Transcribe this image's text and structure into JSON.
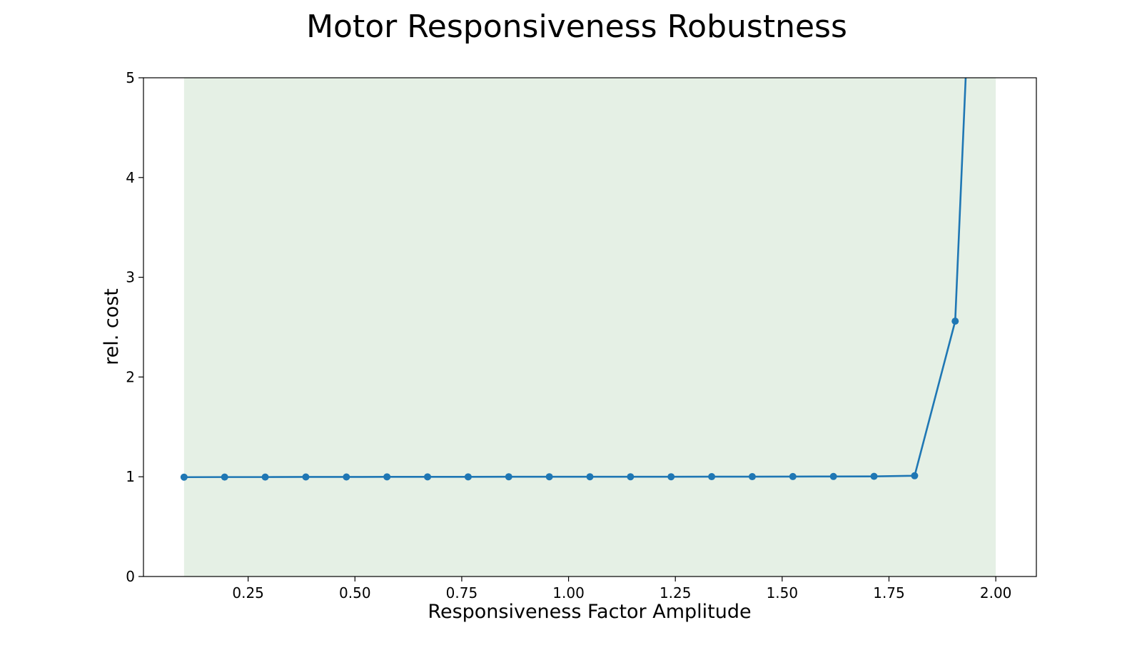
{
  "chart_data": {
    "type": "line",
    "title": "Motor Responsiveness Robustness",
    "xlabel": "Responsiveness Factor Amplitude",
    "ylabel": "rel. cost",
    "xlim": [
      0.005,
      2.095
    ],
    "ylim": [
      0,
      5
    ],
    "xticks": [
      0.25,
      0.5,
      0.75,
      1.0,
      1.25,
      1.5,
      1.75,
      2.0
    ],
    "xtick_labels": [
      "0.25",
      "0.50",
      "0.75",
      "1.00",
      "1.25",
      "1.50",
      "1.75",
      "2.00"
    ],
    "yticks": [
      0,
      1,
      2,
      3,
      4,
      5
    ],
    "ytick_labels": [
      "0",
      "1",
      "2",
      "3",
      "4",
      "5"
    ],
    "grid": false,
    "shaded_region": {
      "x_start": 0.1,
      "x_end": 2.0,
      "color": "#e5f0e5"
    },
    "series": [
      {
        "color": "#1f77b4",
        "x": [
          0.1,
          0.195,
          0.29,
          0.385,
          0.48,
          0.575,
          0.67,
          0.765,
          0.86,
          0.955,
          1.05,
          1.145,
          1.24,
          1.335,
          1.43,
          1.525,
          1.62,
          1.715,
          1.81,
          1.905
        ],
        "y": [
          0.996,
          0.997,
          0.997,
          0.998,
          0.998,
          0.999,
          0.999,
          0.999,
          1.0,
          1.0,
          1.0,
          1.0,
          1.0,
          1.001,
          1.001,
          1.002,
          1.003,
          1.004,
          1.01,
          2.56
        ],
        "extension": {
          "x": 2.0,
          "y": 12.0
        }
      }
    ]
  }
}
